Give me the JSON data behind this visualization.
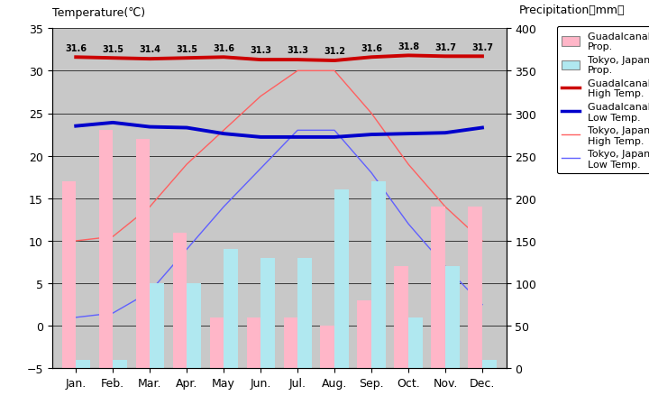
{
  "months": [
    "Jan.",
    "Feb.",
    "Mar.",
    "Apr.",
    "May",
    "Jun.",
    "Jul.",
    "Aug.",
    "Sep.",
    "Oct.",
    "Nov.",
    "Dec."
  ],
  "guadalcanal_precip_mm": [
    220,
    280,
    270,
    160,
    60,
    60,
    60,
    50,
    80,
    120,
    190,
    190
  ],
  "tokyo_precip_mm": [
    10,
    10,
    100,
    100,
    140,
    130,
    130,
    210,
    220,
    60,
    120,
    10
  ],
  "guadalcanal_high": [
    31.6,
    31.5,
    31.4,
    31.5,
    31.6,
    31.3,
    31.3,
    31.2,
    31.6,
    31.8,
    31.7,
    31.7
  ],
  "guadalcanal_low": [
    23.5,
    23.9,
    23.4,
    23.3,
    22.6,
    22.2,
    22.2,
    22.2,
    22.5,
    22.6,
    22.7,
    23.3
  ],
  "tokyo_high": [
    10,
    10.5,
    14,
    19,
    23,
    27,
    30,
    30,
    25,
    19,
    14,
    10
  ],
  "tokyo_low": [
    1,
    1.5,
    4,
    9,
    14,
    18.5,
    23,
    23,
    18,
    12,
    7,
    2.5
  ],
  "guadalcanal_high_labels": [
    "31.6",
    "31.5",
    "31.4",
    "31.5",
    "31.6",
    "31.3",
    "31.3",
    "31.2",
    "31.6",
    "31.8",
    "31.7",
    "31.7"
  ],
  "bar_color_guadalcanal": "#FFB6C8",
  "bar_color_tokyo": "#B0E8F0",
  "line_color_guadalcanal_high": "#CC0000",
  "line_color_guadalcanal_low": "#0000CC",
  "line_color_tokyo_high": "#FF6060",
  "line_color_tokyo_low": "#6060FF",
  "bg_color": "#C8C8C8",
  "ylim_temp": [
    -5,
    35
  ],
  "ylim_precip": [
    0,
    400
  ],
  "title_left": "Temperature(℃)",
  "title_right": "Precipitation（mm）",
  "legend_labels": [
    "Guadalcanal Is.\nProp.",
    "Tokyo, Japan\nProp.",
    "Guadalcanal Is.\nHigh Temp.",
    "Guadalcanal Is.\nLow Temp.",
    "Tokyo, Japan\nHigh Temp.",
    "Tokyo, Japan\nLow Temp."
  ]
}
